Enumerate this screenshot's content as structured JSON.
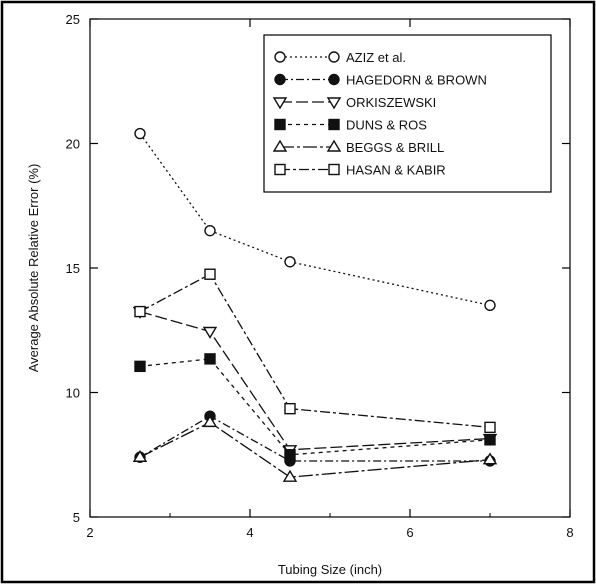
{
  "chart_data": {
    "type": "line",
    "xlabel": "Tubing Size (inch)",
    "ylabel": "Average Absolute Relative Error (%)",
    "xlim": [
      2,
      8
    ],
    "ylim": [
      5,
      25
    ],
    "xticks": [
      "2",
      "4",
      "6",
      "8"
    ],
    "yticks": [
      "5",
      "10",
      "15",
      "20",
      "25"
    ],
    "grid": false,
    "legend_position": "top-right",
    "x": [
      2.625,
      3.5,
      4.5,
      7.0
    ],
    "series": [
      {
        "name": "AZIZ et al.",
        "values": [
          20.4,
          16.5,
          15.25,
          13.5
        ],
        "marker": "circle-open",
        "dash": "2,3"
      },
      {
        "name": "HAGEDORN & BROWN",
        "values": [
          7.4,
          9.05,
          7.25,
          7.25
        ],
        "marker": "circle-filled",
        "dash": "8,3,2,3"
      },
      {
        "name": "ORKISZEWSKI",
        "values": [
          13.25,
          12.45,
          7.7,
          8.15
        ],
        "marker": "triangle-down-open",
        "dash": "12,4"
      },
      {
        "name": "DUNS & ROS",
        "values": [
          11.05,
          11.35,
          7.5,
          8.1
        ],
        "marker": "square-filled",
        "dash": "4,4"
      },
      {
        "name": "BEGGS & BRILL",
        "values": [
          7.4,
          8.8,
          6.6,
          7.3
        ],
        "marker": "triangle-up-open",
        "dash": "14,3,3,3"
      },
      {
        "name": "HASAN & KABIR",
        "values": [
          13.25,
          14.75,
          9.35,
          8.6
        ],
        "marker": "square-open",
        "dash": "10,3,3,3"
      }
    ],
    "colors": {
      "line": "#111111",
      "frame": "#000000",
      "background": "#ffffff"
    }
  }
}
